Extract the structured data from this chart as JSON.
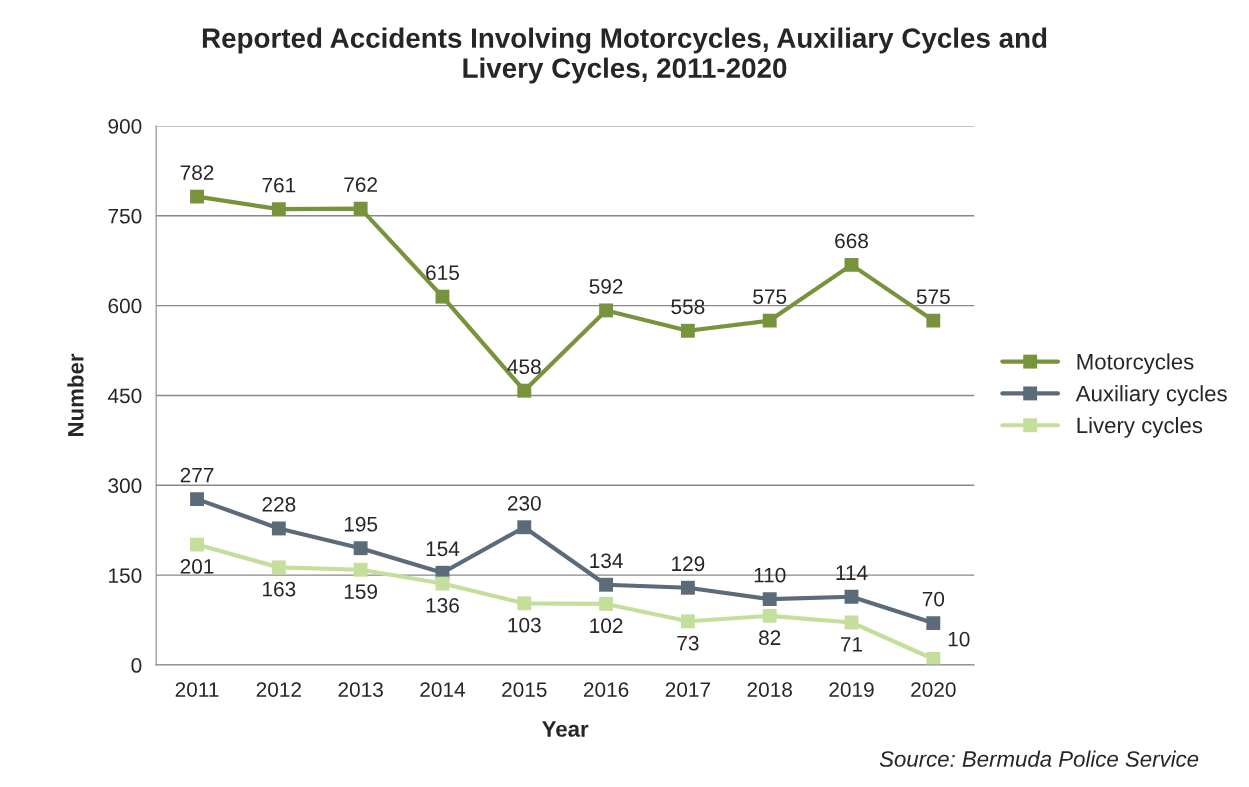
{
  "chart_data": {
    "type": "line",
    "title": "Reported Accidents Involving Motorcycles, Auxiliary Cycles and\nLivery Cycles, 2011-2020",
    "xlabel": "Year",
    "ylabel": "Number",
    "categories": [
      "2011",
      "2012",
      "2013",
      "2014",
      "2015",
      "2016",
      "2017",
      "2018",
      "2019",
      "2020"
    ],
    "series": [
      {
        "name": "Motorcycles",
        "color": "#77933c",
        "values": [
          782,
          761,
          762,
          615,
          458,
          592,
          558,
          575,
          668,
          575
        ]
      },
      {
        "name": "Auxiliary cycles",
        "color": "#5b6b79",
        "values": [
          277,
          228,
          195,
          154,
          230,
          134,
          129,
          110,
          114,
          70
        ]
      },
      {
        "name": "Livery cycles",
        "color": "#c3df9b",
        "values": [
          201,
          163,
          159,
          136,
          103,
          102,
          73,
          82,
          71,
          10
        ]
      }
    ],
    "ylim": [
      0,
      900
    ],
    "yticks": [
      0,
      150,
      300,
      450,
      600,
      750,
      900
    ],
    "grid": "y",
    "legend": "right",
    "marker": "square",
    "line_style": "solid",
    "data_labels": true,
    "annotations": [
      "Source: Bermuda Police Service"
    ]
  }
}
